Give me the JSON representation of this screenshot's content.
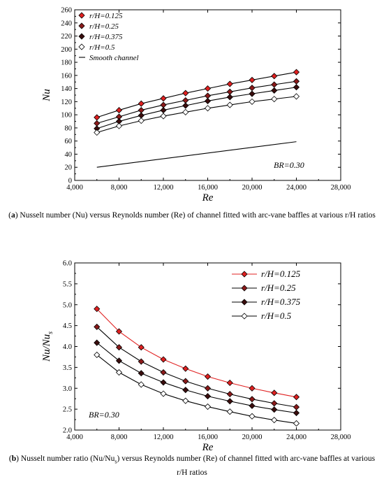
{
  "chart_data": [
    {
      "type": "line",
      "caption_tag": "a",
      "caption": "Nusselt number (Nu) versus Reynolds number (Re) of channel fitted with arc-vane baffles at various r/H ratios",
      "xlabel": "Re",
      "ylabel": "Nu",
      "xlim": [
        4000,
        28000
      ],
      "ylim": [
        0,
        260
      ],
      "xticks": [
        "4,000",
        "8,000",
        "12,000",
        "16,000",
        "20,000",
        "24,000",
        "28,000"
      ],
      "yticks": [
        "0",
        "20",
        "40",
        "60",
        "80",
        "100",
        "120",
        "140",
        "160",
        "180",
        "200",
        "220",
        "240",
        "260"
      ],
      "annotation": "BR=0.30",
      "legend_position": "top-left",
      "grid": false,
      "x": [
        6000,
        8000,
        10000,
        12000,
        14000,
        16000,
        18000,
        20000,
        22000,
        24000
      ],
      "series": [
        {
          "name": "r/H=0.125",
          "marker": "diamond",
          "fill": "#e02020",
          "values": [
            96,
            107,
            117,
            125,
            133,
            140,
            147,
            153,
            159,
            165
          ]
        },
        {
          "name": "r/H=0.25",
          "marker": "diamond",
          "fill": "#8b1a1a",
          "values": [
            87,
            97,
            107,
            115,
            122,
            129,
            135,
            141,
            146,
            151
          ]
        },
        {
          "name": "r/H=0.375",
          "marker": "diamond",
          "fill": "#3a0d0d",
          "values": [
            79,
            90,
            99,
            107,
            114,
            121,
            127,
            132,
            137,
            142
          ]
        },
        {
          "name": "r/H=0.5",
          "marker": "diamond",
          "fill": "#ffffff",
          "values": [
            73,
            83,
            91,
            98,
            104,
            110,
            115,
            120,
            124,
            128
          ]
        },
        {
          "name": "Smooth channel",
          "marker": "none",
          "x": [
            6000,
            24000
          ],
          "values": [
            20,
            59
          ]
        }
      ]
    },
    {
      "type": "line",
      "caption_tag": "b",
      "caption_pre": "Nusselt number ratio (Nu/Nu",
      "caption_sub": "s",
      "caption_post": ") versus Reynolds number (Re) of channel fitted with arc-vane baffles at various r/H ratios",
      "xlabel": "Re",
      "ylabel_main": "Nu/Nu",
      "ylabel_sub": "s",
      "xlim": [
        4000,
        28000
      ],
      "ylim": [
        2.0,
        6.0
      ],
      "xticks": [
        "4,000",
        "8,000",
        "12,000",
        "16,000",
        "20,000",
        "24,000",
        "28,000"
      ],
      "yticks": [
        "2.0",
        "2.5",
        "3.0",
        "3.5",
        "4.0",
        "4.5",
        "5.0",
        "5.5",
        "6.0"
      ],
      "annotation": "BR=0.30",
      "legend_position": "top-right",
      "grid": false,
      "x": [
        6000,
        8000,
        10000,
        12000,
        14000,
        16000,
        18000,
        20000,
        22000,
        24000
      ],
      "series": [
        {
          "name": "r/H=0.125",
          "color": "#e02020",
          "fill": "#e02020",
          "values": [
            4.9,
            4.36,
            3.98,
            3.69,
            3.47,
            3.28,
            3.13,
            3.0,
            2.89,
            2.79
          ]
        },
        {
          "name": "r/H=0.25",
          "color": "#000000",
          "fill": "#8b1a1a",
          "values": [
            4.47,
            3.98,
            3.64,
            3.38,
            3.17,
            3.0,
            2.86,
            2.74,
            2.64,
            2.55
          ]
        },
        {
          "name": "r/H=0.375",
          "color": "#000000",
          "fill": "#3a0d0d",
          "values": [
            4.09,
            3.66,
            3.36,
            3.14,
            2.96,
            2.81,
            2.69,
            2.58,
            2.49,
            2.41
          ]
        },
        {
          "name": "r/H=0.5",
          "color": "#000000",
          "fill": "#ffffff",
          "values": [
            3.8,
            3.38,
            3.09,
            2.87,
            2.7,
            2.56,
            2.44,
            2.33,
            2.24,
            2.16
          ]
        }
      ]
    }
  ]
}
